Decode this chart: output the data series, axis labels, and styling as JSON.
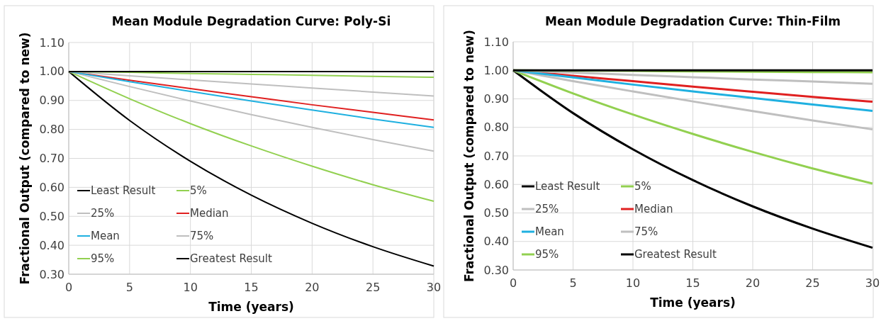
{
  "chart_data": [
    {
      "type": "line",
      "title": "Mean Module Degradation Curve: Poly-Si",
      "xlabel": "Time (years)",
      "ylabel": "Fractional Output (compared to new)",
      "x": [
        0,
        5,
        10,
        15,
        20,
        25,
        30
      ],
      "xlim": [
        0,
        30
      ],
      "xticks": [
        0,
        5,
        10,
        15,
        20,
        25,
        30
      ],
      "ylim": [
        0.3,
        1.1
      ],
      "yticks": [
        {
          "value": 0.3,
          "label": "0.30"
        },
        {
          "value": 0.4,
          "label": "0.40"
        },
        {
          "value": 0.5,
          "label": "0.50"
        },
        {
          "value": 0.6,
          "label": "0.60"
        },
        {
          "value": 0.7,
          "label": "0.70"
        },
        {
          "value": 0.8,
          "label": "0.80"
        },
        {
          "value": 0.9,
          "label": "0.90"
        },
        {
          "value": 1.0,
          "label": "1.00"
        },
        {
          "value": 1.1,
          "label": "1.10"
        }
      ],
      "grid": true,
      "legend": "bottom left",
      "marker": "none",
      "line_style": "solid",
      "series": [
        {
          "name": "Least Result",
          "color": "#000000",
          "values": [
            1,
            0.831,
            0.69,
            0.573,
            0.476,
            0.395,
            0.328
          ]
        },
        {
          "name": "5%",
          "color": "#92d050",
          "values": [
            1,
            0.906,
            0.82,
            0.743,
            0.673,
            0.609,
            0.552
          ]
        },
        {
          "name": "25%",
          "color": "#bfbfbf",
          "values": [
            1,
            0.948,
            0.898,
            0.851,
            0.807,
            0.765,
            0.725
          ]
        },
        {
          "name": "Median",
          "color": "#e02020",
          "values": [
            1,
            0.97,
            0.941,
            0.913,
            0.885,
            0.859,
            0.833
          ]
        },
        {
          "name": "Mean",
          "color": "#1fb0e0",
          "values": [
            1,
            0.965,
            0.931,
            0.898,
            0.867,
            0.836,
            0.807
          ]
        },
        {
          "name": "75%",
          "color": "#bfbfbf",
          "values": [
            1,
            0.985,
            0.971,
            0.957,
            0.943,
            0.929,
            0.915
          ]
        },
        {
          "name": "95%",
          "color": "#92d050",
          "values": [
            1,
            0.997,
            0.993,
            0.99,
            0.987,
            0.983,
            0.98
          ]
        },
        {
          "name": "Greatest Result",
          "color": "#000000",
          "values": [
            1,
            1,
            1,
            1,
            1,
            1,
            1
          ]
        }
      ]
    },
    {
      "type": "line",
      "title": "Mean Module Degradation Curve: Thin-Film",
      "xlabel": "Time (years)",
      "ylabel": "Fractional Output (compared to new)",
      "x": [
        0,
        5,
        10,
        15,
        20,
        25,
        30
      ],
      "xlim": [
        0,
        30
      ],
      "xticks": [
        0,
        5,
        10,
        15,
        20,
        25,
        30
      ],
      "ylim": [
        0.3,
        1.1
      ],
      "yticks": [
        {
          "value": 0.3,
          "label": "0.30"
        },
        {
          "value": 0.4,
          "label": "0.40"
        },
        {
          "value": 0.5,
          "label": "0.50"
        },
        {
          "value": 0.6,
          "label": "0.60"
        },
        {
          "value": 0.7,
          "label": "0.70"
        },
        {
          "value": 0.8,
          "label": "0.80"
        },
        {
          "value": 0.9,
          "label": "0.90"
        },
        {
          "value": 1.0,
          "label": "1.00"
        },
        {
          "value": 1.1,
          "label": "1.10"
        }
      ],
      "grid": true,
      "legend": "bottom left",
      "marker": "none",
      "line_style": "solid",
      "series": [
        {
          "name": "Least Result",
          "color": "#000000",
          "values": [
            1,
            0.85,
            0.723,
            0.615,
            0.523,
            0.445,
            0.378
          ]
        },
        {
          "name": "5%",
          "color": "#92d050",
          "values": [
            1,
            0.919,
            0.845,
            0.777,
            0.714,
            0.656,
            0.603
          ]
        },
        {
          "name": "25%",
          "color": "#bfbfbf",
          "values": [
            1,
            0.962,
            0.926,
            0.891,
            0.857,
            0.824,
            0.793
          ]
        },
        {
          "name": "Median",
          "color": "#e02020",
          "values": [
            1,
            0.981,
            0.962,
            0.943,
            0.925,
            0.907,
            0.89
          ]
        },
        {
          "name": "Mean",
          "color": "#1fb0e0",
          "values": [
            1,
            0.975,
            0.95,
            0.926,
            0.903,
            0.88,
            0.858
          ]
        },
        {
          "name": "75%",
          "color": "#bfbfbf",
          "values": [
            1,
            0.992,
            0.984,
            0.976,
            0.968,
            0.961,
            0.953
          ]
        },
        {
          "name": "95%",
          "color": "#92d050",
          "values": [
            1,
            0.999,
            0.998,
            0.996,
            0.995,
            0.994,
            0.993
          ]
        },
        {
          "name": "Greatest Result",
          "color": "#000000",
          "values": [
            1,
            1,
            1,
            1,
            1,
            1,
            1
          ]
        }
      ]
    }
  ]
}
